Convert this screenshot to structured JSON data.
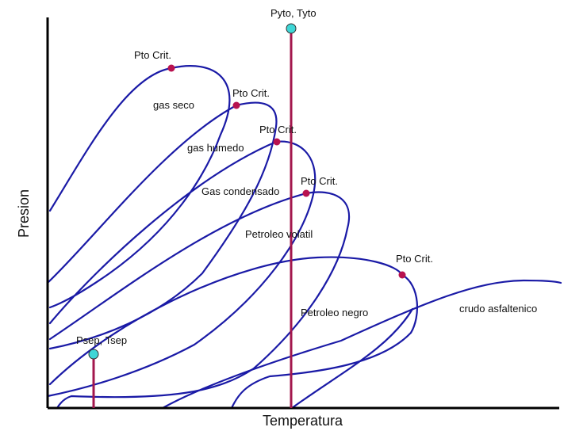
{
  "diagram": {
    "xlabel": "Temperatura",
    "ylabel": "Presion",
    "colors": {
      "curve": "#1a1aa6",
      "isotherm": "#a3174d",
      "critical_point": "#b8124f",
      "condition_point": "#3ed6d6",
      "axis": "#000000"
    },
    "fluids": [
      {
        "name": "gas seco",
        "point_label": "Pto Crit."
      },
      {
        "name": "gas humedo",
        "point_label": "Pto Crit."
      },
      {
        "name": "Gas condensado",
        "point_label": "Pto Crit."
      },
      {
        "name": "Petroleo volatil",
        "point_label": "Pto Crit."
      },
      {
        "name": "Petroleo negro",
        "point_label": "Pto Crit."
      },
      {
        "name": "crudo asfaltenico"
      }
    ],
    "reservoir_point": {
      "label": "Pyto, Tyto"
    },
    "separator_point": {
      "label": "Psep, Tsep"
    }
  }
}
